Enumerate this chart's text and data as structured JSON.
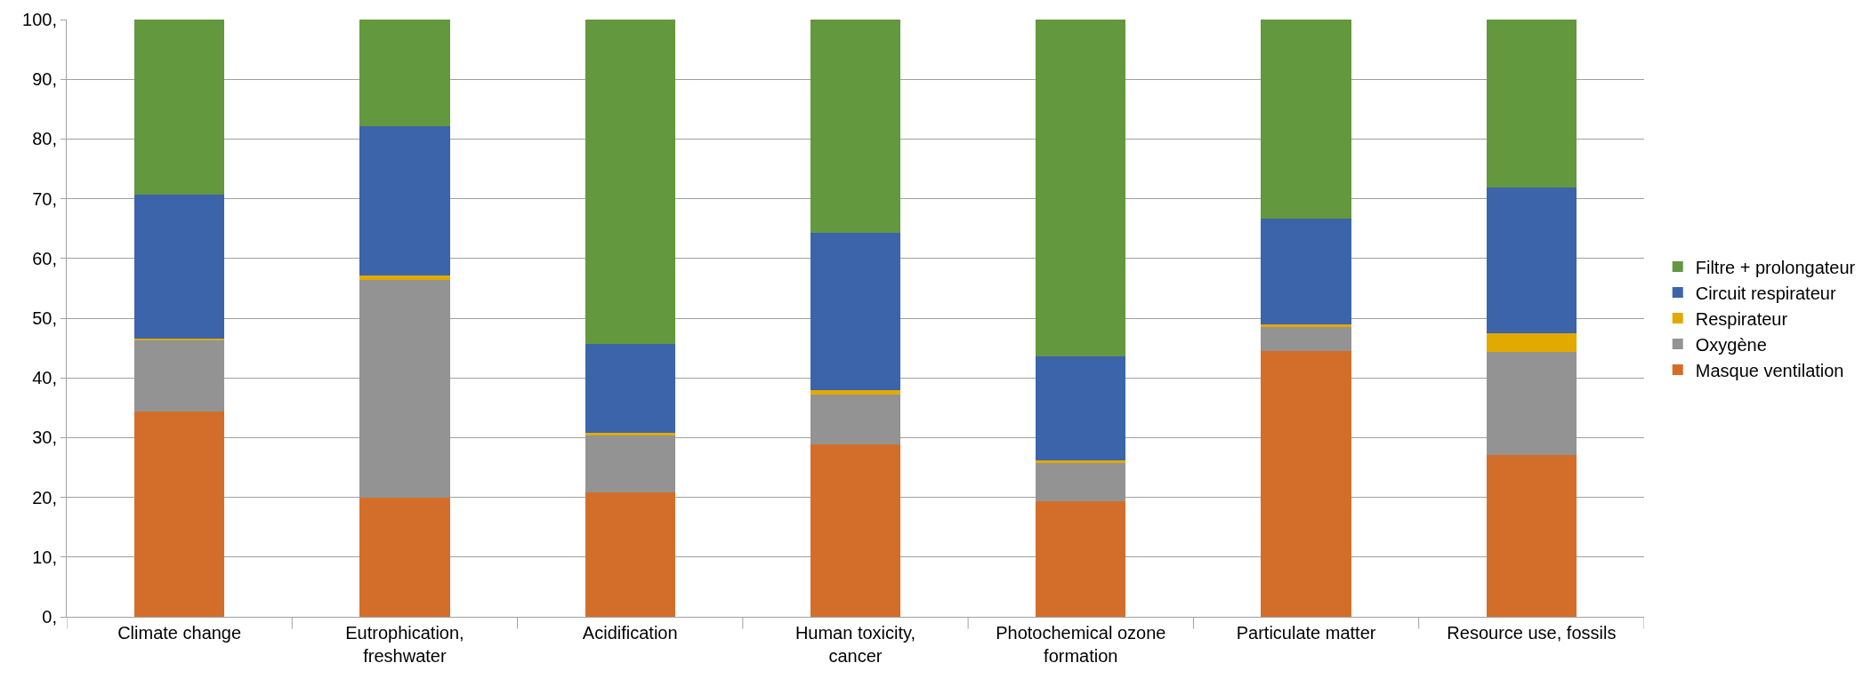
{
  "chart_data": {
    "type": "bar",
    "stacked": true,
    "categories": [
      "Climate change",
      "Eutrophication, freshwater",
      "Acidification",
      "Human toxicity, cancer",
      "Photochemical ozone formation",
      "Particulate matter",
      "Resource use, fossils"
    ],
    "series": [
      {
        "name": "Masque ventilation",
        "color": "#d36e2a",
        "values": [
          34.4,
          20.0,
          20.9,
          28.9,
          19.4,
          44.5,
          27.1
        ]
      },
      {
        "name": "Oxygène",
        "color": "#939393",
        "values": [
          11.9,
          36.4,
          9.4,
          8.3,
          6.4,
          4.0,
          17.2
        ]
      },
      {
        "name": "Respirateur",
        "color": "#e2aa00",
        "values": [
          0.3,
          0.7,
          0.5,
          0.8,
          0.4,
          0.5,
          3.1
        ]
      },
      {
        "name": "Circuit respirateur",
        "color": "#3b64ab",
        "values": [
          24.1,
          25.0,
          14.9,
          26.3,
          17.4,
          17.6,
          24.5
        ]
      },
      {
        "name": "Filtre + prolongateur",
        "color": "#63983e",
        "values": [
          29.3,
          17.9,
          54.3,
          35.7,
          56.4,
          33.4,
          28.1
        ]
      }
    ],
    "ylim": [
      0,
      100
    ],
    "yticks": [
      {
        "value": 0,
        "label": "0,"
      },
      {
        "value": 10,
        "label": "10,"
      },
      {
        "value": 20,
        "label": "20,"
      },
      {
        "value": 30,
        "label": "30,"
      },
      {
        "value": 40,
        "label": "40,"
      },
      {
        "value": 50,
        "label": "50,"
      },
      {
        "value": 60,
        "label": "60,"
      },
      {
        "value": 70,
        "label": "70,"
      },
      {
        "value": 80,
        "label": "80,"
      },
      {
        "value": 90,
        "label": "90,"
      },
      {
        "value": 100,
        "label": "100,"
      }
    ],
    "grid": "y",
    "legend": "right"
  }
}
